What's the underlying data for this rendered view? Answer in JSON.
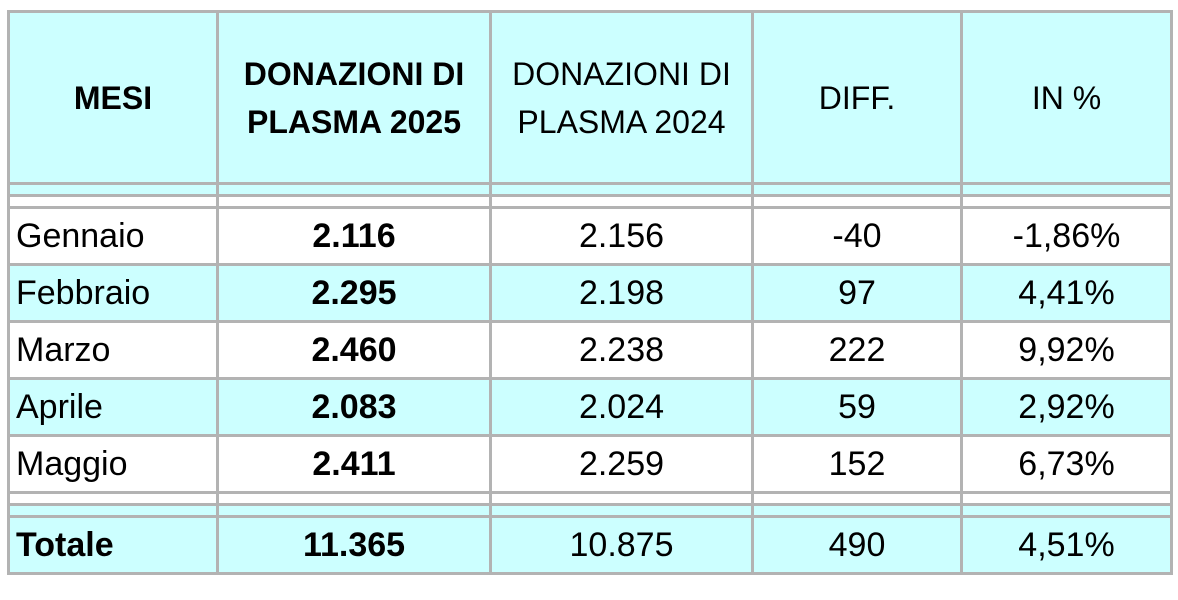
{
  "chart_data": {
    "type": "table",
    "columns": [
      "MESI",
      "DONAZIONI DI PLASMA 2025",
      "DONAZIONI DI PLASMA 2024",
      "DIFF.",
      "IN %"
    ],
    "header": {
      "mesi": "MESI",
      "col2_line1": "DONAZIONI DI",
      "col2_line2": "PLASMA 2025",
      "col3_line1": "DONAZIONI DI",
      "col3_line2": "PLASMA 2024",
      "diff": "DIFF.",
      "pct": "IN %"
    },
    "rows": [
      {
        "month": "Gennaio",
        "d2025": "2.116",
        "d2024": "2.156",
        "diff": "-40",
        "pct": "-1,86%"
      },
      {
        "month": "Febbraio",
        "d2025": "2.295",
        "d2024": "2.198",
        "diff": "97",
        "pct": "4,41%"
      },
      {
        "month": "Marzo",
        "d2025": "2.460",
        "d2024": "2.238",
        "diff": "222",
        "pct": "9,92%"
      },
      {
        "month": "Aprile",
        "d2025": "2.083",
        "d2024": "2.024",
        "diff": "59",
        "pct": "2,92%"
      },
      {
        "month": "Maggio",
        "d2025": "2.411",
        "d2024": "2.259",
        "diff": "152",
        "pct": "6,73%"
      }
    ],
    "total": {
      "label": "Totale",
      "d2025": "11.365",
      "d2024": "10.875",
      "diff": "490",
      "pct": "4,51%"
    },
    "colors": {
      "header_bg": "#ccffff",
      "alt_row_bg": "#ccffff",
      "row_bg": "#ffffff",
      "border": "#b3b3b3"
    }
  }
}
